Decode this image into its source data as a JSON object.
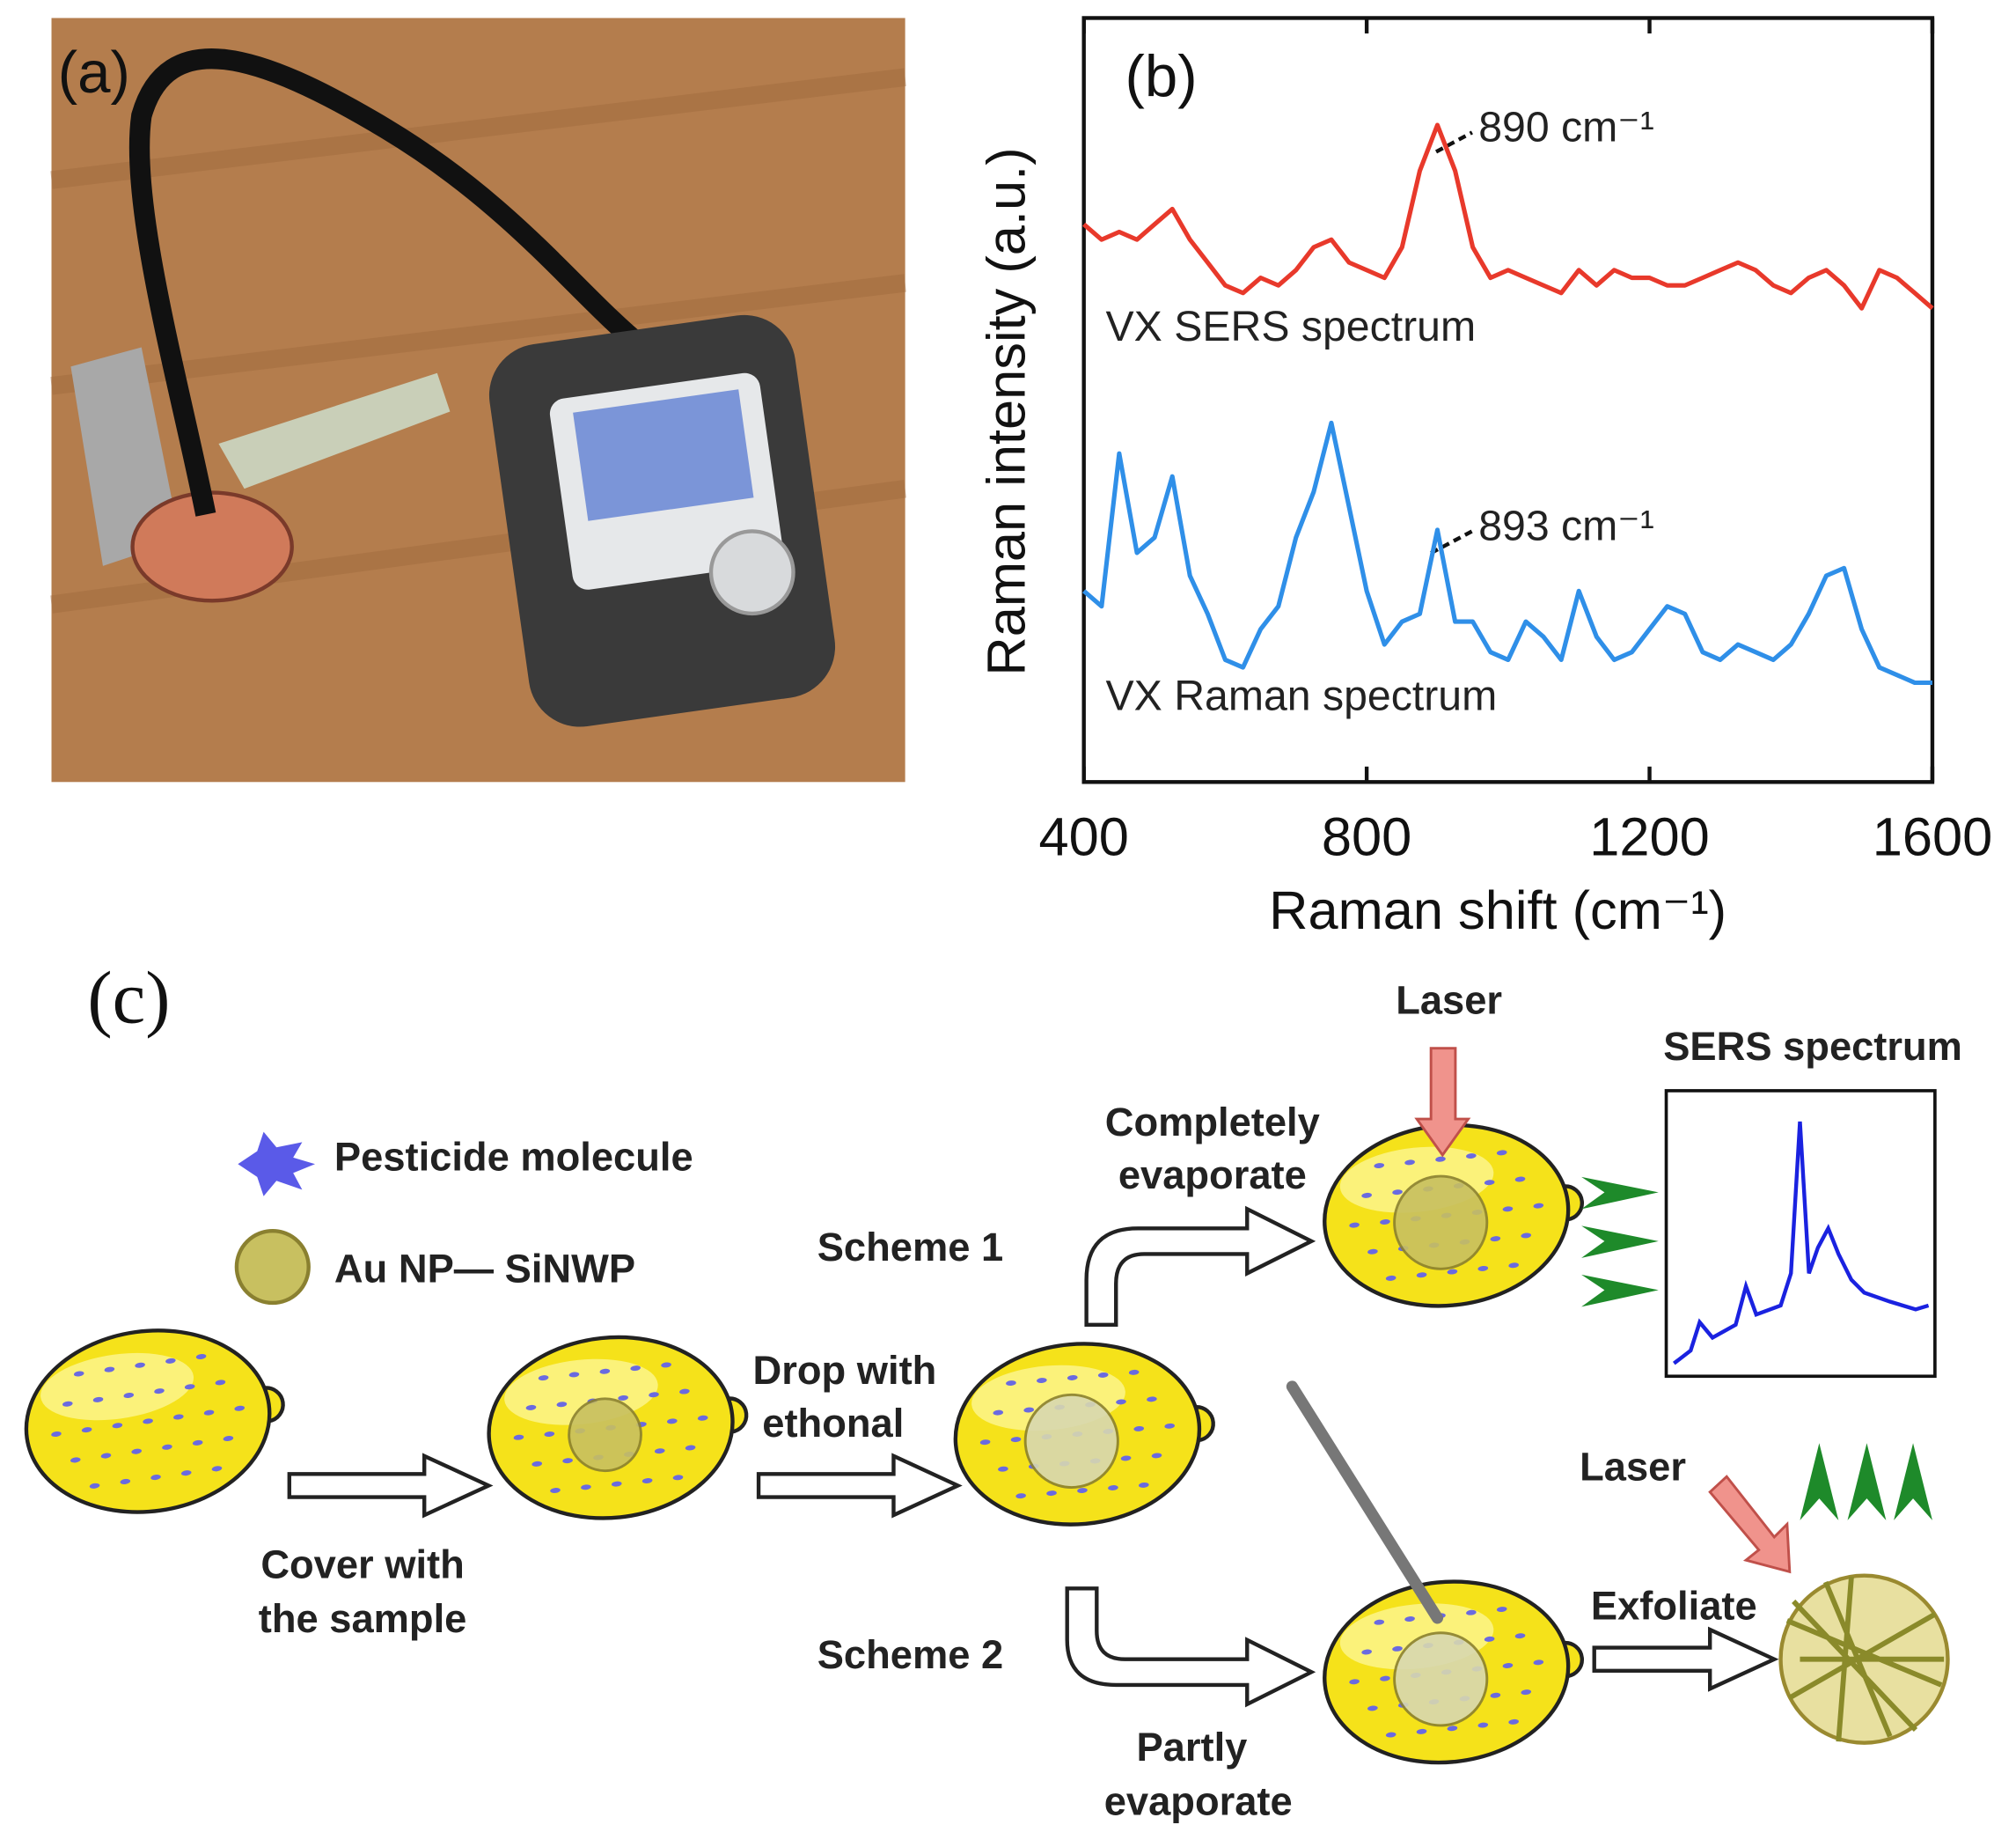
{
  "panel_a": {
    "label": "(a)"
  },
  "chart_data": {
    "type": "line",
    "label": "(b)",
    "xlabel": "Raman shift (cm⁻¹)",
    "ylabel": "Raman intensity (a.u.)",
    "x": [
      400,
      425,
      450,
      475,
      500,
      525,
      550,
      575,
      600,
      625,
      650,
      675,
      700,
      725,
      750,
      775,
      800,
      825,
      850,
      875,
      900,
      925,
      950,
      975,
      1000,
      1025,
      1050,
      1075,
      1100,
      1125,
      1150,
      1175,
      1200,
      1225,
      1250,
      1275,
      1300,
      1325,
      1350,
      1375,
      1400,
      1425,
      1450,
      1475,
      1500,
      1525,
      1550,
      1575,
      1600
    ],
    "series": [
      {
        "name": "VX SERS spectrum",
        "color": "#e8392b",
        "values": [
          73,
          71,
          72,
          71,
          73,
          75,
          71,
          68,
          65,
          64,
          66,
          65,
          67,
          70,
          71,
          68,
          67,
          66,
          70,
          80,
          86,
          80,
          70,
          66,
          67,
          66,
          65,
          64,
          67,
          65,
          67,
          66,
          66,
          65,
          65,
          66,
          67,
          68,
          67,
          65,
          64,
          66,
          67,
          65,
          62,
          67,
          66,
          64,
          62
        ]
      },
      {
        "name": "VX Raman spectrum",
        "color": "#2f8fe8",
        "values": [
          25,
          23,
          43,
          30,
          32,
          40,
          27,
          22,
          16,
          15,
          20,
          23,
          32,
          38,
          47,
          36,
          25,
          18,
          21,
          22,
          33,
          21,
          21,
          17,
          16,
          21,
          19,
          16,
          25,
          19,
          16,
          17,
          20,
          23,
          22,
          17,
          16,
          18,
          17,
          16,
          18,
          22,
          27,
          28,
          20,
          15,
          14,
          13,
          13
        ]
      }
    ],
    "annotations": [
      "890 cm⁻¹",
      "893 cm⁻¹"
    ],
    "xlim": [
      400,
      1600
    ],
    "ylim": [
      0,
      100
    ],
    "xticks": [
      400,
      800,
      1200,
      1600
    ]
  },
  "diagram": {
    "label": "(c)",
    "legend": [
      "Pesticide molecule",
      "Au NP— SiNWP"
    ],
    "scheme_1": "Scheme 1",
    "scheme_2": "Scheme 2",
    "cover": [
      "Cover with",
      "the sample"
    ],
    "drop": [
      "Drop with",
      "ethonal"
    ],
    "complete": [
      "Completely",
      "evaporate"
    ],
    "partly": [
      "Partly",
      "evaporate"
    ],
    "exfoliate": "Exfoliate",
    "lasers": [
      "Laser",
      "Laser"
    ],
    "sers_title": "SERS spectrum"
  }
}
